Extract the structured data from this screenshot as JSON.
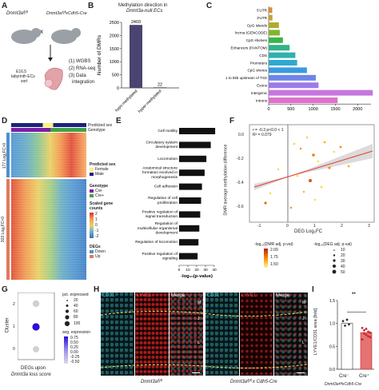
{
  "panels": {
    "A": "A",
    "B": "B",
    "C": "C",
    "D": "D",
    "E": "E",
    "F": "F",
    "G": "G",
    "H": "H",
    "I": "I"
  },
  "panel_a": {
    "mouse_left": "Dnmt3aᶠˡ/ᶠˡ",
    "cross": "x",
    "mouse_right": "Dnmt3aᶠˡ/ᶠˡxCdh5-Cre",
    "stage": "E16.5",
    "tissue": "labyrinth ECs",
    "sort": "sort",
    "steps": [
      "(1) WGBS",
      "(2) RNA-seq",
      "(3) Data",
      "integration"
    ]
  },
  "panel_b": {
    "title_line1": "Methylation direction in",
    "title_line2": "Dnmt3a-null ECs",
    "ylabel": "Number of DMRs",
    "yticks": [
      "0",
      "500",
      "1000",
      "1500",
      "2000",
      "2500"
    ]
  },
  "panel_d": {
    "row_labels": [
      "Predicted sex",
      "Genotype"
    ],
    "side_top": "177 Log₂FC>0",
    "side_bottom": "303 Log₂FC<0",
    "legend": {
      "sex_title": "Predicted sex",
      "sex_items": [
        "Female",
        "Male"
      ],
      "genotype_title": "Genotype",
      "genotype_items": [
        "Cre-",
        "Cre+"
      ],
      "scale_title": "Scaled gene counts",
      "scale_ticks": [
        "2",
        "1",
        "0",
        "-1",
        "-2"
      ],
      "degs_title": "DEGs",
      "degs_items": [
        "Down",
        "Up"
      ]
    }
  },
  "panel_f": {
    "stats_line1": "r = -0.3 p<0.0 < 1",
    "stats_line2": "R² = 0.079",
    "ylabel": "DMR average methylation difference",
    "xlabel": "DEG Log₂FC",
    "xticks": [
      "-1",
      "0",
      "1",
      "2",
      "3"
    ],
    "yticks": [
      "0.0",
      "-0.2",
      "-0.4",
      "-0.6"
    ],
    "legend_color_title": "-log₁₀(DMR adj. p-val)",
    "legend_color_ticks": [
      "2.00",
      "1.75",
      "1.50"
    ],
    "legend_size_title": "-log₁₀(DEG adj. p-val)",
    "legend_size_ticks": [
      "10",
      "20",
      "30",
      "40",
      "50"
    ]
  },
  "panel_g": {
    "ylabel": "Cluster",
    "yticks": [
      "2",
      "1",
      "0"
    ],
    "xlabel_line1": "DEGs upon",
    "xlabel_line2": "Dnmt3a loss score",
    "pct_title": "pct. expressed",
    "pct_ticks": [
      "20",
      "40",
      "60",
      "80",
      "100"
    ],
    "avg_title": "avg. expression",
    "avg_ticks": [
      "0.75",
      "0.50",
      "0.25",
      "0.00",
      "-0.25",
      "-0.50"
    ]
  },
  "panel_h": {
    "tiles": [
      "CD31",
      "LYVE1",
      "Merge",
      "CD31",
      "LYVE1",
      "Merge"
    ],
    "genotype_left": "Dnmt3aᶠˡ/ᶠˡ",
    "genotype_right": "Dnmt3aᶠˡ/ᶠˡ x Cdh5-Cre",
    "markers": [
      "M",
      "J",
      "L"
    ]
  },
  "panel_i": {
    "ylabel": "LYVE1/CD31 area [fold]",
    "yticks": [
      "0.0",
      "0.5",
      "1.0",
      "1.5"
    ],
    "sig": "**",
    "xticks": [
      "Cre⁻",
      "Cre⁺"
    ],
    "xlabel": "Dnmt3aᶠˡ/ᶠˡxCdh5-Cre"
  },
  "chart_data": [
    {
      "type": "bar",
      "panel": "B",
      "title": "Methylation direction in Dnmt3a-null ECs",
      "ylabel": "Number of DMRs",
      "ylim": [
        0,
        2500
      ],
      "categories": [
        "hypo-methylated",
        "hyper-methylated"
      ],
      "values": [
        2403,
        22
      ],
      "colors": [
        "#4a4470",
        "#4a4470"
      ]
    },
    {
      "type": "bar",
      "panel": "C",
      "orientation": "horizontal",
      "xlim": [
        0,
        2300
      ],
      "xticks": [
        "0",
        "500",
        "1000",
        "1500",
        "2000"
      ],
      "categories": [
        "5'UTR",
        "3'UTR",
        "CpG islands",
        "lncrna (GENCODE)",
        "CpG shelves",
        "Enhancers (PANTOM)",
        "CDS",
        "Promoters",
        "CpG shores",
        "1 to 5kb upstream of TSS",
        "Exons",
        "Intergenic",
        "Introns"
      ],
      "values": [
        80,
        85,
        230,
        250,
        320,
        470,
        600,
        640,
        860,
        1060,
        1120,
        2340,
        1550
      ],
      "colors": [
        "#d98d3a",
        "#c7a13b",
        "#b0ab2f",
        "#7fb52e",
        "#3bb44a",
        "#2fb38a",
        "#2fb0b0",
        "#2ea9d0",
        "#3a9ae0",
        "#6d85e8",
        "#9b7ce8",
        "#c576e0",
        "#e06fcf"
      ]
    },
    {
      "type": "bar",
      "panel": "E",
      "orientation": "horizontal",
      "xlabel": "-log₁₀(p-value)",
      "xlim": [
        0,
        40
      ],
      "xticks": [
        "0",
        "10",
        "20",
        "30",
        "40"
      ],
      "categories": [
        "Cell motility",
        "Circulatory system development",
        "Locomotion",
        "Anatomical structure formation involved in morphogenesis",
        "Cell adhesion",
        "Regulation of cell proliferation",
        "Positive regulation of signal transduction",
        "Regulation of multicellular organismal development",
        "Regulation of locomotion",
        "Positive regulation of signaling"
      ],
      "values": [
        41,
        36,
        31,
        29,
        26,
        25,
        24,
        23,
        22,
        21
      ],
      "colors": [
        "#111111"
      ]
    },
    {
      "type": "bar",
      "panel": "I",
      "ylabel": "LYVE1/CD31 area [fold]",
      "ylim": [
        0,
        1.5
      ],
      "categories": [
        "Cre⁻",
        "Cre⁺"
      ],
      "values": [
        1.0,
        0.8
      ],
      "points": [
        [
          1.05,
          0.95,
          1.08,
          0.98
        ],
        [
          0.9,
          0.85,
          0.75,
          0.82,
          0.7,
          0.65,
          0.78,
          0.88,
          0.72,
          0.8
        ]
      ]
    }
  ]
}
